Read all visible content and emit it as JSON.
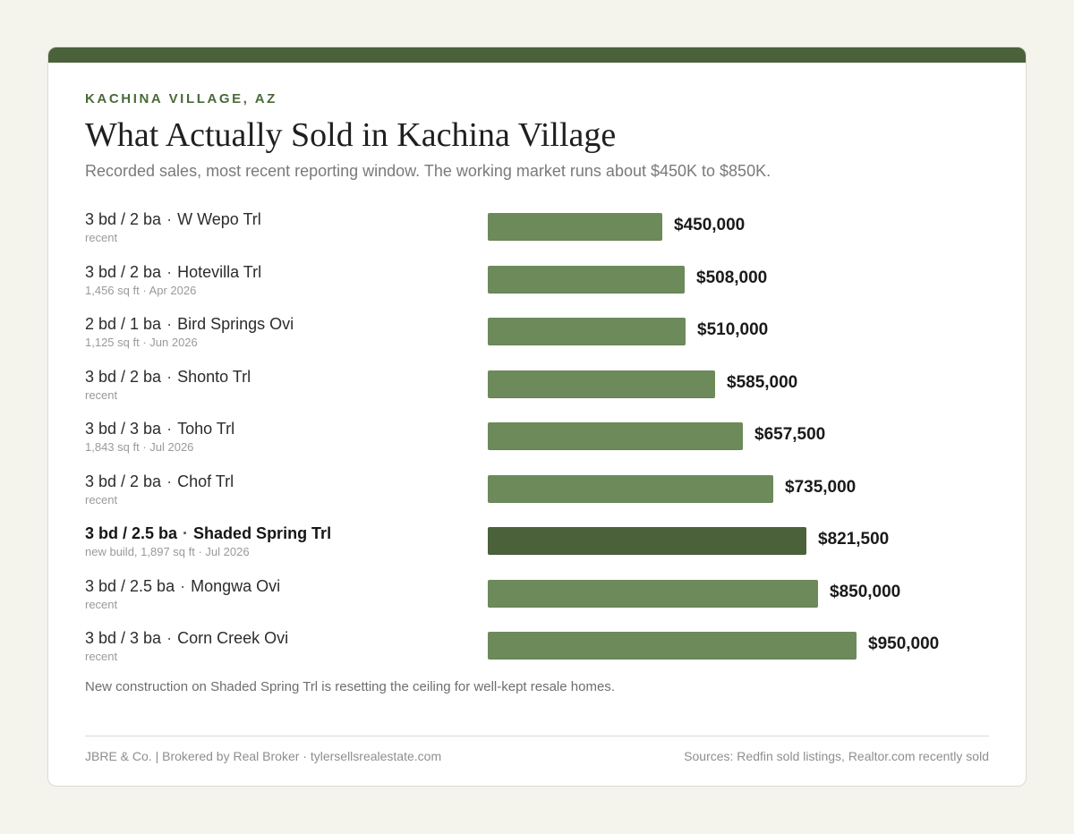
{
  "header": {
    "eyebrow": "KACHINA VILLAGE, AZ",
    "title": "What Actually Sold in Kachina Village",
    "subtitle": "Recorded sales, most recent reporting window. The working market runs about $450K to $850K."
  },
  "colors": {
    "bar": "#6d8a5a",
    "bar_featured": "#4a613a",
    "accent": "#4a613a"
  },
  "chart_data": {
    "type": "bar",
    "orientation": "horizontal",
    "categories": [
      "3 bd / 2 ba · W Wepo Trl",
      "3 bd / 2 ba · Hotevilla Trl",
      "2 bd / 1 ba · Bird Springs Ovi",
      "3 bd / 2 ba · Shonto Trl",
      "3 bd / 3 ba · Toho Trl",
      "3 bd / 2 ba · Chof Trl",
      "3 bd / 2.5 ba · Shaded Spring Trl",
      "3 bd / 2.5 ba · Mongwa Ovi",
      "3 bd / 3 ba · Corn Creek Ovi"
    ],
    "values": [
      450000,
      508000,
      510000,
      585000,
      657500,
      735000,
      821500,
      850000,
      950000
    ],
    "xlim": [
      0,
      950000
    ],
    "grid": false,
    "rows": [
      {
        "beds": "3 bd / 2 ba",
        "street": "W Wepo Trl",
        "detail": "recent",
        "value": 450000,
        "label": "$450,000",
        "featured": false
      },
      {
        "beds": "3 bd / 2 ba",
        "street": "Hotevilla Trl",
        "detail": "1,456 sq ft  ·  Apr 2026",
        "value": 508000,
        "label": "$508,000",
        "featured": false
      },
      {
        "beds": "2 bd / 1 ba",
        "street": "Bird Springs Ovi",
        "detail": "1,125 sq ft  ·  Jun 2026",
        "value": 510000,
        "label": "$510,000",
        "featured": false
      },
      {
        "beds": "3 bd / 2 ba",
        "street": "Shonto Trl",
        "detail": "recent",
        "value": 585000,
        "label": "$585,000",
        "featured": false
      },
      {
        "beds": "3 bd / 3 ba",
        "street": "Toho Trl",
        "detail": "1,843 sq ft  ·  Jul 2026",
        "value": 657500,
        "label": "$657,500",
        "featured": false
      },
      {
        "beds": "3 bd / 2 ba",
        "street": "Chof Trl",
        "detail": "recent",
        "value": 735000,
        "label": "$735,000",
        "featured": false
      },
      {
        "beds": "3 bd / 2.5 ba",
        "street": "Shaded Spring Trl",
        "detail": "new build, 1,897 sq ft  ·  Jul 2026",
        "value": 821500,
        "label": "$821,500",
        "featured": true
      },
      {
        "beds": "3 bd / 2.5 ba",
        "street": "Mongwa Ovi",
        "detail": "recent",
        "value": 850000,
        "label": "$850,000",
        "featured": false
      },
      {
        "beds": "3 bd / 3 ba",
        "street": "Corn Creek Ovi",
        "detail": "recent",
        "value": 950000,
        "label": "$950,000",
        "featured": false
      }
    ]
  },
  "note": "New construction on Shaded Spring Trl is resetting the ceiling for well-kept resale homes.",
  "footer": {
    "left": "JBRE & Co.  |  Brokered by Real Broker  ·  tylersellsrealestate.com",
    "right": "Sources: Redfin sold listings, Realtor.com recently sold"
  }
}
